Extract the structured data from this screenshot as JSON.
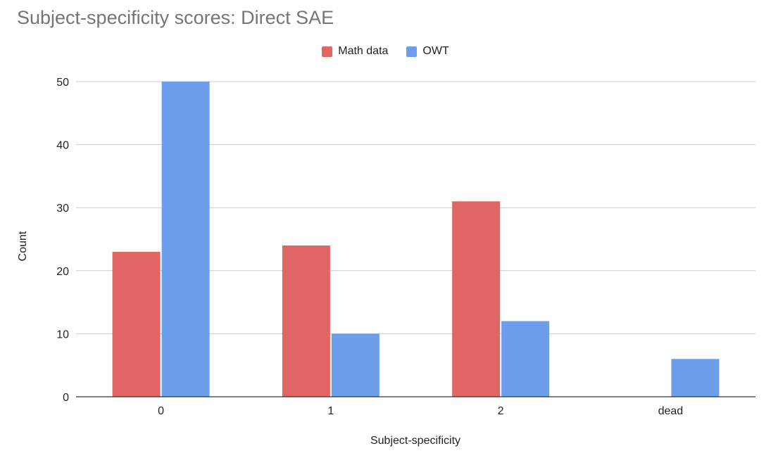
{
  "chart_data": {
    "type": "bar",
    "title": "Subject-specificity scores: Direct SAE",
    "xlabel": "Subject-specificity",
    "ylabel": "Count",
    "categories": [
      "0",
      "1",
      "2",
      "dead"
    ],
    "series": [
      {
        "name": "Math data",
        "values": [
          23,
          24,
          31,
          0
        ],
        "color": "#e06666"
      },
      {
        "name": "OWT",
        "values": [
          50,
          10,
          12,
          6
        ],
        "color": "#6d9eeb"
      }
    ],
    "ylim": [
      0,
      50
    ],
    "yticks": [
      0,
      10,
      20,
      30,
      40,
      50
    ],
    "grid": true,
    "legend_position": "top"
  }
}
